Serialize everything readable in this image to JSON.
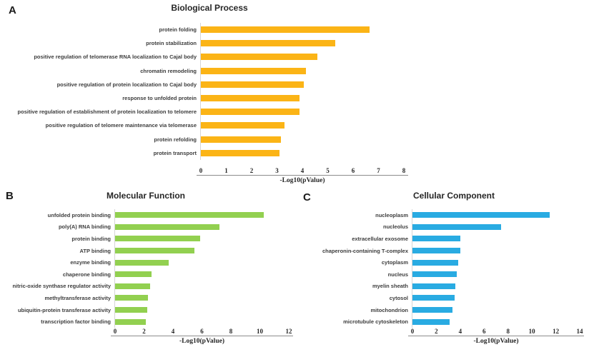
{
  "figure": {
    "background": "#ffffff",
    "panels": [
      {
        "letter": "A"
      },
      {
        "letter": "B"
      },
      {
        "letter": "C"
      }
    ]
  },
  "chart_data": [
    {
      "type": "bar",
      "orientation": "horizontal",
      "title": "Biological Process",
      "xlabel": "-Log10(pValue)",
      "xlim": [
        0,
        8
      ],
      "xticks": [
        0,
        1,
        2,
        3,
        4,
        5,
        6,
        7,
        8
      ],
      "grid": false,
      "legend": false,
      "bar_color": "#FBB416",
      "categories": [
        "protein folding",
        "protein stabilization",
        "positive regulation of telomerase RNA localization to Cajal body",
        "chromatin remodeling",
        "positive regulation of protein localization to Cajal body",
        "response to unfolded protein",
        "positive regulation of establishment of protein localization to telomere",
        "positive regulation of telomere maintenance via telomerase",
        "protein refolding",
        "protein transport"
      ],
      "values": [
        6.65,
        5.3,
        4.6,
        4.15,
        4.05,
        3.9,
        3.9,
        3.3,
        3.15,
        3.1
      ]
    },
    {
      "type": "bar",
      "orientation": "horizontal",
      "title": "Molecular Function",
      "xlabel": "-Log10(pValue)",
      "xlim": [
        0,
        12
      ],
      "xticks": [
        0,
        2,
        4,
        6,
        8,
        10,
        12
      ],
      "grid": false,
      "legend": false,
      "bar_color": "#92D050",
      "categories": [
        "unfolded protein binding",
        "poly(A) RNA binding",
        "protein binding",
        "ATP binding",
        "enzyme binding",
        "chaperone binding",
        "nitric-oxide synthase regulator activity",
        "methyltransferase activity",
        "ubiquitin-protein transferase activity",
        "transcription factor binding"
      ],
      "values": [
        10.25,
        7.2,
        5.9,
        5.5,
        3.7,
        2.5,
        2.4,
        2.25,
        2.2,
        2.1
      ]
    },
    {
      "type": "bar",
      "orientation": "horizontal",
      "title": "Cellular Component",
      "xlabel": "-Log10(pValue)",
      "xlim": [
        0,
        14
      ],
      "xticks": [
        0,
        2,
        4,
        6,
        8,
        10,
        12,
        14
      ],
      "grid": false,
      "legend": false,
      "bar_color": "#29ABE2",
      "categories": [
        "nucleoplasm",
        "nucleolus",
        "extracellular exosome",
        "chaperonin-containing T-complex",
        "cytoplasm",
        "nucleus",
        "myelin sheath",
        "cytosol",
        "mitochondrion",
        "microtubule cytoskeleton"
      ],
      "values": [
        11.5,
        7.4,
        4.0,
        4.0,
        3.85,
        3.7,
        3.6,
        3.55,
        3.35,
        3.1
      ]
    }
  ]
}
